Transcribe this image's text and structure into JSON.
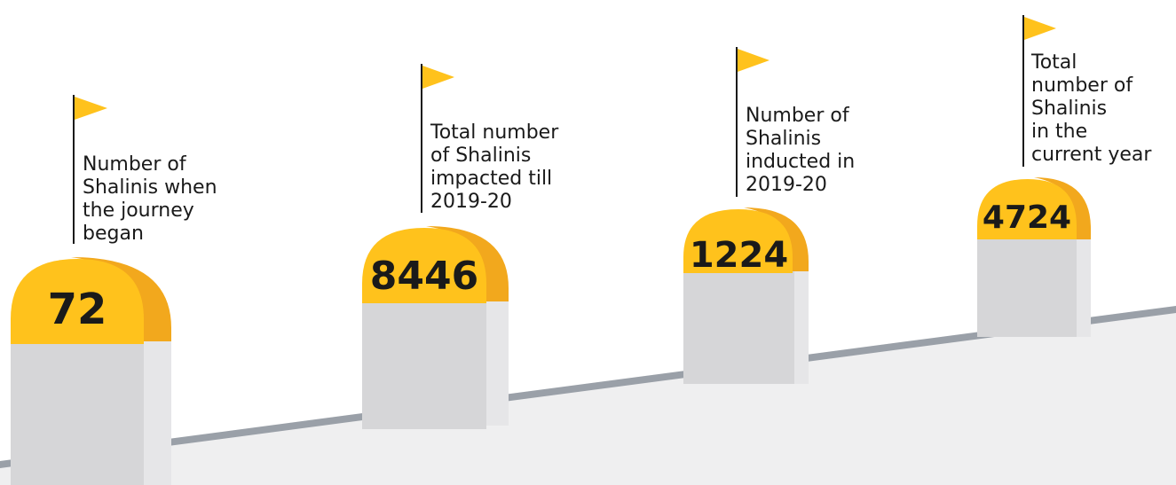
{
  "milestones": [
    {
      "value": "72",
      "label": "Number of\nShalinis when\nthe journey\nbegan"
    },
    {
      "value": "8446",
      "label": "Total number\nof Shalinis\nimpacted till\n2019-20"
    },
    {
      "value": "1224",
      "label": "Number of\nShalinis\ninducted in\n2019-20"
    },
    {
      "value": "4724",
      "label": "Total\nnumber of\nShalinis\nin  the\ncurrent year"
    }
  ],
  "colors": {
    "cap": "#ffc21c",
    "cap_shadow": "#f2a81d",
    "stone": "#d6d6d8",
    "stone_side": "#e6e6e8",
    "road": "#efeff0",
    "road_edge": "#9aa0a8",
    "flag": "#ffc21c",
    "pole": "#1a1a1a"
  },
  "icons": [
    "milestone-icon",
    "flag-icon"
  ]
}
